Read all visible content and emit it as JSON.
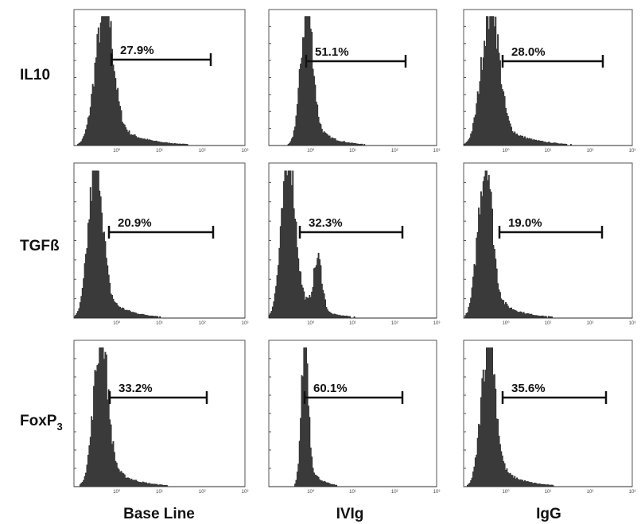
{
  "figure": {
    "row_labels": [
      "IL10",
      "TGFß",
      {
        "text": "FoxP",
        "subscript": "3"
      }
    ],
    "column_labels": [
      "Base Line",
      "IVIg",
      "IgG"
    ],
    "x_tick_labels": [
      "10⁰",
      "10¹",
      "10²",
      "10³"
    ],
    "panels": [
      [
        "27.9%",
        "51.1%",
        "28.0%"
      ],
      [
        "20.9%",
        "32.3%",
        "19.0%"
      ],
      [
        "33.2%",
        "60.1%",
        "35.6%"
      ]
    ]
  }
}
